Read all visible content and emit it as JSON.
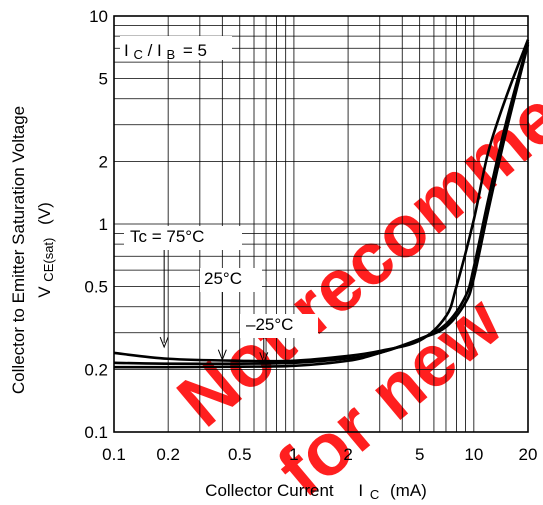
{
  "chart_data": {
    "type": "line",
    "xlabel_main": "Collector Current",
    "xlabel_symbol": "I",
    "xlabel_sub": "C",
    "xlabel_unit": "(mA)",
    "ylabel_line1": "Collector to Emitter Saturation Voltage",
    "ylabel_symbol": "V",
    "ylabel_sub": "CE(sat)",
    "ylabel_unit": "(V)",
    "x_scale": "log",
    "y_scale": "log",
    "xlim": [
      0.1,
      20
    ],
    "ylim": [
      0.1,
      10
    ],
    "grid": true,
    "x_ticks": [
      {
        "value": 0.1,
        "label": "0.1"
      },
      {
        "value": 0.2,
        "label": "0.2"
      },
      {
        "value": 0.5,
        "label": "0.5"
      },
      {
        "value": 1,
        "label": "1"
      },
      {
        "value": 2,
        "label": "2"
      },
      {
        "value": 5,
        "label": "5"
      },
      {
        "value": 10,
        "label": "10"
      },
      {
        "value": 20,
        "label": "20"
      }
    ],
    "y_ticks": [
      {
        "value": 0.1,
        "label": "0.1"
      },
      {
        "value": 0.2,
        "label": "0.2"
      },
      {
        "value": 0.5,
        "label": "0.5"
      },
      {
        "value": 1,
        "label": "1"
      },
      {
        "value": 2,
        "label": "2"
      },
      {
        "value": 5,
        "label": "5"
      },
      {
        "value": 10,
        "label": "10"
      }
    ],
    "condition": {
      "left": "I",
      "left_sub": "C",
      "slash": "/ I",
      "right_sub": "B",
      "value": "= 5"
    },
    "series": [
      {
        "name": "Tc = 75°C",
        "x": [
          0.1,
          0.2,
          0.5,
          1,
          2,
          3,
          5,
          7,
          8,
          10,
          12,
          15,
          20
        ],
        "y": [
          0.24,
          0.225,
          0.22,
          0.22,
          0.232,
          0.245,
          0.275,
          0.36,
          0.5,
          1.05,
          2.2,
          4.0,
          7.7
        ]
      },
      {
        "name": "25°C",
        "x": [
          0.1,
          0.2,
          0.5,
          1,
          2,
          3,
          5,
          7,
          9,
          10,
          12,
          15,
          20
        ],
        "y": [
          0.215,
          0.213,
          0.213,
          0.215,
          0.226,
          0.24,
          0.28,
          0.33,
          0.45,
          0.62,
          1.3,
          3.0,
          7.5
        ]
      },
      {
        "name": "–25°C",
        "x": [
          0.1,
          0.2,
          0.5,
          1,
          2,
          3,
          5,
          7,
          9,
          10,
          12,
          15,
          20
        ],
        "y": [
          0.205,
          0.205,
          0.206,
          0.208,
          0.22,
          0.24,
          0.28,
          0.32,
          0.42,
          0.55,
          1.15,
          2.7,
          7.3
        ]
      }
    ],
    "annotations": [
      {
        "text": "Tc = 75°C",
        "x": 0.19,
        "y": 0.245
      },
      {
        "text": "25°C",
        "x": 0.4,
        "y": 0.213
      },
      {
        "text": "–25°C",
        "x": 0.68,
        "y": 0.207
      }
    ],
    "watermark": [
      "Not recommended",
      "for new"
    ],
    "colors": {
      "line": "#000000",
      "grid": "#000000",
      "watermark": "#ff1f1f"
    }
  }
}
